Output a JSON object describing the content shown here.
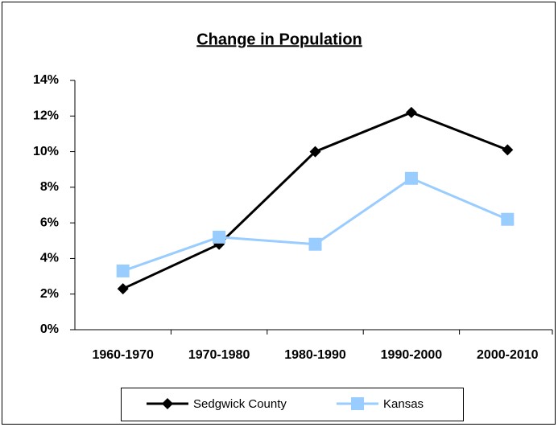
{
  "chart_data": {
    "type": "line",
    "title": "Change in Population",
    "categories": [
      "1960-1970",
      "1970-1980",
      "1980-1990",
      "1990-2000",
      "2000-2010"
    ],
    "series": [
      {
        "name": "Sedgwick County",
        "color": "#000000",
        "marker": "diamond",
        "values": [
          2.3,
          4.8,
          10.0,
          12.2,
          10.1
        ]
      },
      {
        "name": "Kansas",
        "color": "#99ccff",
        "marker": "square",
        "values": [
          3.3,
          5.2,
          4.8,
          8.5,
          6.2
        ]
      }
    ],
    "ylim": [
      0,
      14
    ],
    "yticks": [
      {
        "value": 0,
        "label": "0%"
      },
      {
        "value": 2,
        "label": "2%"
      },
      {
        "value": 4,
        "label": "4%"
      },
      {
        "value": 6,
        "label": "6%"
      },
      {
        "value": 8,
        "label": "8%"
      },
      {
        "value": 10,
        "label": "10%"
      },
      {
        "value": 12,
        "label": "12%"
      },
      {
        "value": 14,
        "label": "14%"
      }
    ],
    "grid": false,
    "legend": "bottom"
  }
}
